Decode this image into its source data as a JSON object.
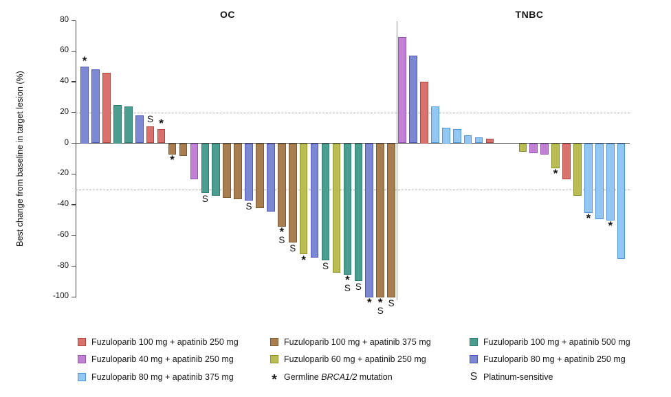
{
  "y_axis": {
    "label": "Best change from baseline in target lesion (%)",
    "ticks": [
      80,
      60,
      40,
      20,
      0,
      -20,
      -40,
      -60,
      -80,
      -100
    ],
    "min": -100,
    "max": 80,
    "dashed_lines": [
      20,
      -30
    ]
  },
  "colors": {
    "red": {
      "fill": "#D9716C",
      "stroke": "#AE4742"
    },
    "orchid": {
      "fill": "#C181D4",
      "stroke": "#9553B6"
    },
    "lightblue": {
      "fill": "#93C6F1",
      "stroke": "#4B96DC"
    },
    "brown": {
      "fill": "#A87E50",
      "stroke": "#7A5930"
    },
    "yellow": {
      "fill": "#BABD54",
      "stroke": "#8B912D"
    },
    "teal": {
      "fill": "#4B9D8F",
      "stroke": "#2E7A6D"
    },
    "blue": {
      "fill": "#7D88D3",
      "stroke": "#4D58B5"
    }
  },
  "chart_data": {
    "type": "bar",
    "subtype": "waterfall",
    "title": "",
    "ylabel": "Best change from baseline in target lesion (%)",
    "ylim": [
      -100,
      80
    ],
    "reference_lines": [
      20,
      -30
    ],
    "grid": false,
    "legend_position": "bottom",
    "mark_meanings": {
      "*": "Germline BRCA1/2 mutation",
      "S": "Platinum-sensitive"
    },
    "panels": [
      {
        "name": "OC",
        "bars": [
          {
            "value": 50,
            "color": "blue",
            "mark": "*"
          },
          {
            "value": 48,
            "color": "blue"
          },
          {
            "value": 46,
            "color": "red"
          },
          {
            "value": 25,
            "color": "teal"
          },
          {
            "value": 24,
            "color": "teal"
          },
          {
            "value": 18,
            "color": "blue"
          },
          {
            "value": 11,
            "color": "red",
            "mark": "S"
          },
          {
            "value": 9,
            "color": "red",
            "mark": "*"
          },
          {
            "value": -7,
            "color": "brown",
            "mark": "*"
          },
          {
            "value": -8,
            "color": "brown"
          },
          {
            "value": -23,
            "color": "orchid"
          },
          {
            "value": -32,
            "color": "teal",
            "mark": "S"
          },
          {
            "value": -34,
            "color": "teal"
          },
          {
            "value": -35,
            "color": "brown"
          },
          {
            "value": -36,
            "color": "brown"
          },
          {
            "value": -37,
            "color": "blue",
            "mark": "S"
          },
          {
            "value": -42,
            "color": "brown"
          },
          {
            "value": -44,
            "color": "blue"
          },
          {
            "value": -54,
            "color": "brown",
            "mark": "*S"
          },
          {
            "value": -64,
            "color": "brown",
            "mark": "S"
          },
          {
            "value": -72,
            "color": "yellow",
            "mark": "*"
          },
          {
            "value": -74,
            "color": "blue"
          },
          {
            "value": -76,
            "color": "teal",
            "mark": "S"
          },
          {
            "value": -84,
            "color": "yellow"
          },
          {
            "value": -85,
            "color": "teal",
            "mark": "*S"
          },
          {
            "value": -89,
            "color": "teal",
            "mark": "S"
          },
          {
            "value": -100,
            "color": "blue",
            "mark": "*"
          },
          {
            "value": -100,
            "color": "brown",
            "mark": "*S"
          },
          {
            "value": -100,
            "color": "brown",
            "mark": "S"
          }
        ]
      },
      {
        "name": "TNBC",
        "bars": [
          {
            "value": 69,
            "color": "orchid"
          },
          {
            "value": 57,
            "color": "blue"
          },
          {
            "value": 40,
            "color": "red"
          },
          {
            "value": 24,
            "color": "lightblue"
          },
          {
            "value": 10,
            "color": "lightblue"
          },
          {
            "value": 9,
            "color": "lightblue"
          },
          {
            "value": 5,
            "color": "lightblue"
          },
          {
            "value": 4,
            "color": "lightblue"
          },
          {
            "value": 3,
            "color": "red"
          },
          {
            "gap": true
          },
          {
            "gap": true
          },
          {
            "value": -5,
            "color": "yellow"
          },
          {
            "value": -6,
            "color": "orchid"
          },
          {
            "value": -7,
            "color": "orchid"
          },
          {
            "value": -16,
            "color": "yellow",
            "mark": "*"
          },
          {
            "value": -23,
            "color": "red"
          },
          {
            "value": -34,
            "color": "yellow"
          },
          {
            "value": -45,
            "color": "lightblue",
            "mark": "*"
          },
          {
            "value": -49,
            "color": "lightblue"
          },
          {
            "value": -50,
            "color": "lightblue",
            "mark": "*"
          },
          {
            "value": -75,
            "color": "lightblue"
          }
        ]
      }
    ]
  },
  "legend": {
    "items": [
      {
        "key": "red",
        "label": "Fuzuloparib 100 mg + apatinib 250 mg"
      },
      {
        "key": "brown",
        "label": "Fuzuloparib 100 mg + apatinib 375 mg"
      },
      {
        "key": "teal",
        "label": "Fuzuloparib 100 mg + apatinib 500 mg"
      },
      {
        "key": "orchid",
        "label": "Fuzuloparib 40 mg + apatinib 250 mg"
      },
      {
        "key": "yellow",
        "label": "Fuzuloparib 60 mg + apatinib 250 mg"
      },
      {
        "key": "blue",
        "label": "Fuzuloparib 80 mg + apatinib 250 mg"
      },
      {
        "key": "lightblue",
        "label": "Fuzuloparib 80 mg + apatinib 375 mg"
      },
      {
        "symbol": "*",
        "prefix": "Germline ",
        "italic": "BRCA1/2",
        "suffix": " mutation"
      },
      {
        "symbol": "S",
        "label": "Platinum-sensitive"
      }
    ]
  }
}
